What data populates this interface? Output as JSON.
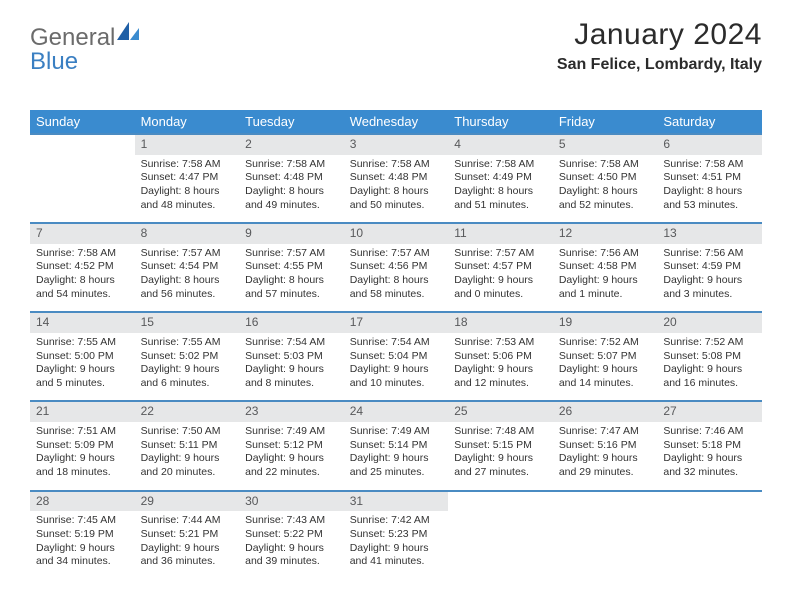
{
  "logo": {
    "text1": "General",
    "text2": "Blue"
  },
  "title": "January 2024",
  "location": "San Felice, Lombardy, Italy",
  "colors": {
    "header_bg": "#3a8bcf",
    "header_text": "#ffffff",
    "daynum_bg": "#e6e7e8",
    "daynum_text": "#58595b",
    "row_border": "#4a8bc2",
    "logo_gray": "#6b6b6b",
    "logo_blue": "#3a7fc2"
  },
  "weekdays": [
    "Sunday",
    "Monday",
    "Tuesday",
    "Wednesday",
    "Thursday",
    "Friday",
    "Saturday"
  ],
  "weeks": [
    [
      null,
      {
        "n": "1",
        "sr": "Sunrise: 7:58 AM",
        "ss": "Sunset: 4:47 PM",
        "d1": "Daylight: 8 hours",
        "d2": "and 48 minutes."
      },
      {
        "n": "2",
        "sr": "Sunrise: 7:58 AM",
        "ss": "Sunset: 4:48 PM",
        "d1": "Daylight: 8 hours",
        "d2": "and 49 minutes."
      },
      {
        "n": "3",
        "sr": "Sunrise: 7:58 AM",
        "ss": "Sunset: 4:48 PM",
        "d1": "Daylight: 8 hours",
        "d2": "and 50 minutes."
      },
      {
        "n": "4",
        "sr": "Sunrise: 7:58 AM",
        "ss": "Sunset: 4:49 PM",
        "d1": "Daylight: 8 hours",
        "d2": "and 51 minutes."
      },
      {
        "n": "5",
        "sr": "Sunrise: 7:58 AM",
        "ss": "Sunset: 4:50 PM",
        "d1": "Daylight: 8 hours",
        "d2": "and 52 minutes."
      },
      {
        "n": "6",
        "sr": "Sunrise: 7:58 AM",
        "ss": "Sunset: 4:51 PM",
        "d1": "Daylight: 8 hours",
        "d2": "and 53 minutes."
      }
    ],
    [
      {
        "n": "7",
        "sr": "Sunrise: 7:58 AM",
        "ss": "Sunset: 4:52 PM",
        "d1": "Daylight: 8 hours",
        "d2": "and 54 minutes."
      },
      {
        "n": "8",
        "sr": "Sunrise: 7:57 AM",
        "ss": "Sunset: 4:54 PM",
        "d1": "Daylight: 8 hours",
        "d2": "and 56 minutes."
      },
      {
        "n": "9",
        "sr": "Sunrise: 7:57 AM",
        "ss": "Sunset: 4:55 PM",
        "d1": "Daylight: 8 hours",
        "d2": "and 57 minutes."
      },
      {
        "n": "10",
        "sr": "Sunrise: 7:57 AM",
        "ss": "Sunset: 4:56 PM",
        "d1": "Daylight: 8 hours",
        "d2": "and 58 minutes."
      },
      {
        "n": "11",
        "sr": "Sunrise: 7:57 AM",
        "ss": "Sunset: 4:57 PM",
        "d1": "Daylight: 9 hours",
        "d2": "and 0 minutes."
      },
      {
        "n": "12",
        "sr": "Sunrise: 7:56 AM",
        "ss": "Sunset: 4:58 PM",
        "d1": "Daylight: 9 hours",
        "d2": "and 1 minute."
      },
      {
        "n": "13",
        "sr": "Sunrise: 7:56 AM",
        "ss": "Sunset: 4:59 PM",
        "d1": "Daylight: 9 hours",
        "d2": "and 3 minutes."
      }
    ],
    [
      {
        "n": "14",
        "sr": "Sunrise: 7:55 AM",
        "ss": "Sunset: 5:00 PM",
        "d1": "Daylight: 9 hours",
        "d2": "and 5 minutes."
      },
      {
        "n": "15",
        "sr": "Sunrise: 7:55 AM",
        "ss": "Sunset: 5:02 PM",
        "d1": "Daylight: 9 hours",
        "d2": "and 6 minutes."
      },
      {
        "n": "16",
        "sr": "Sunrise: 7:54 AM",
        "ss": "Sunset: 5:03 PM",
        "d1": "Daylight: 9 hours",
        "d2": "and 8 minutes."
      },
      {
        "n": "17",
        "sr": "Sunrise: 7:54 AM",
        "ss": "Sunset: 5:04 PM",
        "d1": "Daylight: 9 hours",
        "d2": "and 10 minutes."
      },
      {
        "n": "18",
        "sr": "Sunrise: 7:53 AM",
        "ss": "Sunset: 5:06 PM",
        "d1": "Daylight: 9 hours",
        "d2": "and 12 minutes."
      },
      {
        "n": "19",
        "sr": "Sunrise: 7:52 AM",
        "ss": "Sunset: 5:07 PM",
        "d1": "Daylight: 9 hours",
        "d2": "and 14 minutes."
      },
      {
        "n": "20",
        "sr": "Sunrise: 7:52 AM",
        "ss": "Sunset: 5:08 PM",
        "d1": "Daylight: 9 hours",
        "d2": "and 16 minutes."
      }
    ],
    [
      {
        "n": "21",
        "sr": "Sunrise: 7:51 AM",
        "ss": "Sunset: 5:09 PM",
        "d1": "Daylight: 9 hours",
        "d2": "and 18 minutes."
      },
      {
        "n": "22",
        "sr": "Sunrise: 7:50 AM",
        "ss": "Sunset: 5:11 PM",
        "d1": "Daylight: 9 hours",
        "d2": "and 20 minutes."
      },
      {
        "n": "23",
        "sr": "Sunrise: 7:49 AM",
        "ss": "Sunset: 5:12 PM",
        "d1": "Daylight: 9 hours",
        "d2": "and 22 minutes."
      },
      {
        "n": "24",
        "sr": "Sunrise: 7:49 AM",
        "ss": "Sunset: 5:14 PM",
        "d1": "Daylight: 9 hours",
        "d2": "and 25 minutes."
      },
      {
        "n": "25",
        "sr": "Sunrise: 7:48 AM",
        "ss": "Sunset: 5:15 PM",
        "d1": "Daylight: 9 hours",
        "d2": "and 27 minutes."
      },
      {
        "n": "26",
        "sr": "Sunrise: 7:47 AM",
        "ss": "Sunset: 5:16 PM",
        "d1": "Daylight: 9 hours",
        "d2": "and 29 minutes."
      },
      {
        "n": "27",
        "sr": "Sunrise: 7:46 AM",
        "ss": "Sunset: 5:18 PM",
        "d1": "Daylight: 9 hours",
        "d2": "and 32 minutes."
      }
    ],
    [
      {
        "n": "28",
        "sr": "Sunrise: 7:45 AM",
        "ss": "Sunset: 5:19 PM",
        "d1": "Daylight: 9 hours",
        "d2": "and 34 minutes."
      },
      {
        "n": "29",
        "sr": "Sunrise: 7:44 AM",
        "ss": "Sunset: 5:21 PM",
        "d1": "Daylight: 9 hours",
        "d2": "and 36 minutes."
      },
      {
        "n": "30",
        "sr": "Sunrise: 7:43 AM",
        "ss": "Sunset: 5:22 PM",
        "d1": "Daylight: 9 hours",
        "d2": "and 39 minutes."
      },
      {
        "n": "31",
        "sr": "Sunrise: 7:42 AM",
        "ss": "Sunset: 5:23 PM",
        "d1": "Daylight: 9 hours",
        "d2": "and 41 minutes."
      },
      null,
      null,
      null
    ]
  ]
}
